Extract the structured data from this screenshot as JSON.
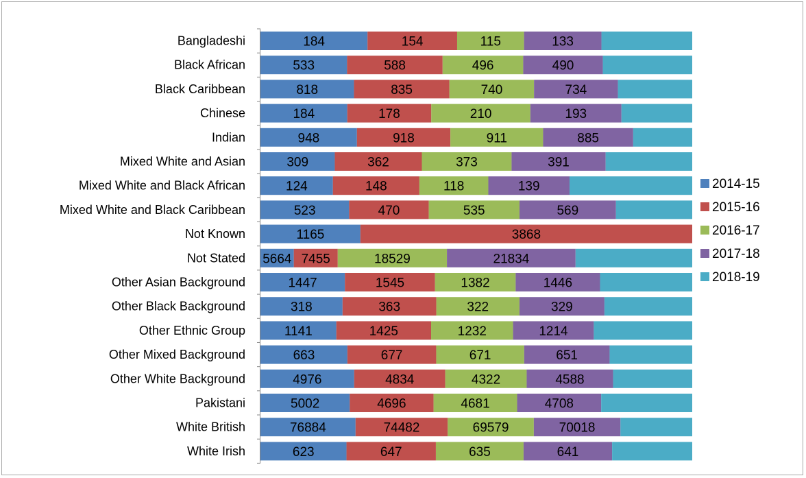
{
  "chart_data": {
    "type": "bar",
    "orientation": "horizontal",
    "stacked": "percent",
    "title": "",
    "xlabel": "",
    "ylabel": "",
    "grid": false,
    "legend_position": "right",
    "categories": [
      "Bangladeshi",
      "Black African",
      "Black Caribbean",
      "Chinese",
      "Indian",
      "Mixed White and Asian",
      "Mixed White and Black African",
      "Mixed White and Black Caribbean",
      "Not Known",
      "Not Stated",
      "Other Asian Background",
      "Other Black Background",
      "Other Ethnic Group",
      "Other Mixed Background",
      "Other White Background",
      "Pakistani",
      "White British",
      "White Irish"
    ],
    "series": [
      {
        "name": "2014-15",
        "color": "#4F81BD",
        "values": [
          184,
          533,
          818,
          184,
          948,
          309,
          124,
          523,
          1165,
          5664,
          1447,
          318,
          1141,
          663,
          4976,
          5002,
          76884,
          623
        ],
        "labels": [
          "184",
          "533",
          "818",
          "184",
          "948",
          "309",
          "124",
          "523",
          "1165",
          "5664",
          "1447",
          "318",
          "1141",
          "663",
          "4976",
          "5002",
          "76884",
          "623"
        ]
      },
      {
        "name": "2015-16",
        "color": "#C0504D",
        "values": [
          154,
          588,
          835,
          178,
          918,
          362,
          148,
          470,
          3868,
          7455,
          1545,
          363,
          1425,
          677,
          4834,
          4696,
          74482,
          647
        ],
        "labels": [
          "154",
          "588",
          "835",
          "178",
          "918",
          "362",
          "148",
          "470",
          "3868",
          "7455",
          "1545",
          "363",
          "1425",
          "677",
          "4834",
          "4696",
          "74482",
          "647"
        ]
      },
      {
        "name": "2016-17",
        "color": "#9BBB59",
        "values": [
          115,
          496,
          740,
          210,
          911,
          373,
          118,
          535,
          0,
          18529,
          1382,
          322,
          1232,
          671,
          4322,
          4681,
          69579,
          635
        ],
        "labels": [
          "115",
          "496",
          "740",
          "210",
          "911",
          "373",
          "118",
          "535",
          "",
          "18529",
          "1382",
          "322",
          "1232",
          "671",
          "4322",
          "4681",
          "69579",
          "635"
        ]
      },
      {
        "name": "2017-18",
        "color": "#8064A2",
        "values": [
          133,
          490,
          734,
          193,
          885,
          391,
          139,
          569,
          0,
          21834,
          1446,
          329,
          1214,
          651,
          4588,
          4708,
          70018,
          641
        ],
        "labels": [
          "133",
          "490",
          "734",
          "193",
          "885",
          "391",
          "139",
          "569",
          "",
          "21834",
          "1446",
          "329",
          "1214",
          "651",
          "4588",
          "4708",
          "70018",
          "641"
        ]
      },
      {
        "name": "2018-19",
        "color": "#4BACC6",
        "values": [
          156,
          550,
          650,
          150,
          580,
          360,
          210,
          450,
          0,
          19800,
          1580,
          340,
          1480,
          630,
          4200,
          5100,
          58000,
          580
        ],
        "labels": [
          "",
          "",
          "",
          "",
          "",
          "",
          "",
          "",
          "",
          "",
          "",
          "",
          "",
          "",
          "",
          "",
          "",
          ""
        ]
      }
    ]
  }
}
